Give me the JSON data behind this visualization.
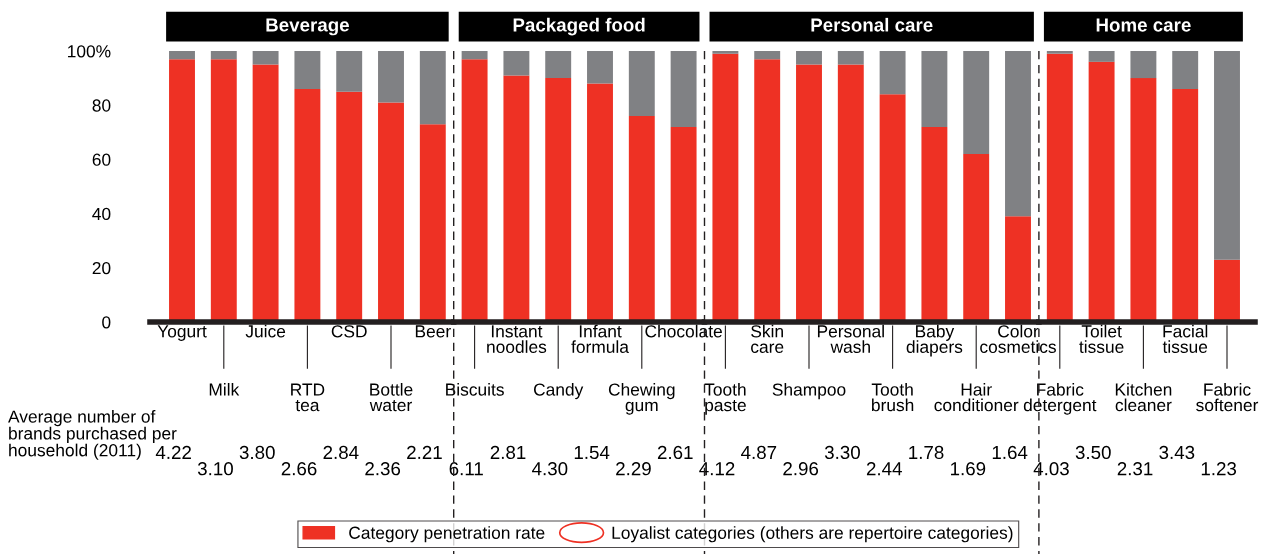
{
  "chart_data": [
    {
      "type": "bar",
      "stacked": true,
      "title": "Beverage",
      "categories": [
        "Yogurt",
        "Milk",
        "Juice",
        "RTD tea",
        "CSD",
        "Bottle water",
        "Beer"
      ],
      "series": [
        {
          "name": "Category penetration rate",
          "color": "#ee3124",
          "values": [
            97,
            97,
            95,
            86,
            85,
            81,
            73
          ]
        },
        {
          "color": "#808184",
          "values": [
            3,
            3,
            5,
            14,
            15,
            19,
            27
          ]
        }
      ],
      "ylim": [
        0,
        100
      ],
      "yticks": [
        0,
        20,
        40,
        60,
        80,
        {
          "value": 100,
          "label": "100%"
        }
      ],
      "legend": "bottom",
      "annotations": [
        "Average number of brands purchased per household (2011)",
        "Loyalist categories (others are repertoire categories)",
        "4.22",
        "3.10",
        "3.80",
        "2.66",
        "2.84",
        "2.36",
        "2.21"
      ]
    },
    {
      "type": "bar",
      "stacked": true,
      "title": "Packaged food",
      "categories": [
        "Biscuits",
        "Instant noodles",
        "Candy",
        "Infant formula",
        "Chewing gum",
        "Chocolate"
      ],
      "series": [
        {
          "color": "#ee3124",
          "values": [
            97,
            91,
            90,
            88,
            76,
            72
          ]
        },
        {
          "color": "#808184",
          "values": [
            3,
            9,
            10,
            12,
            24,
            28
          ]
        }
      ],
      "ylim": [
        0,
        100
      ],
      "tick_labels": "x",
      "annotations": [
        "6.11",
        "2.81",
        "4.30",
        "1.54",
        "2.29",
        "2.61"
      ]
    },
    {
      "type": "bar",
      "stacked": true,
      "title": "Personal care",
      "categories": [
        "Tooth paste",
        "Skin care",
        "Shampoo",
        "Personal wash",
        "Tooth brush",
        "Baby diapers",
        "Hair conditioner",
        "Color cosmetics"
      ],
      "series": [
        {
          "color": "#ee3124",
          "values": [
            99,
            97,
            95,
            95,
            84,
            72,
            62,
            39
          ]
        },
        {
          "color": "#808184",
          "values": [
            1,
            3,
            5,
            5,
            16,
            28,
            38,
            61
          ]
        }
      ],
      "ylim": [
        0,
        100
      ],
      "tick_labels": "x",
      "annotations": [
        "4.12",
        "4.87",
        "2.96",
        "3.30",
        "2.44",
        "1.78",
        "1.69",
        "1.64"
      ]
    },
    {
      "type": "bar",
      "stacked": true,
      "title": "Home care",
      "categories": [
        "Fabric detergent",
        "Toilet tissue",
        "Kitchen cleaner",
        "Facial tissue",
        "Fabric softener"
      ],
      "series": [
        {
          "color": "#ee3124",
          "values": [
            99,
            96,
            90,
            86,
            23
          ]
        },
        {
          "color": "#808184",
          "values": [
            1,
            4,
            10,
            14,
            77
          ]
        }
      ],
      "ylim": [
        0,
        100
      ],
      "tick_labels": "x",
      "annotations": [
        "4.03",
        "3.50",
        "2.31",
        "3.43",
        "1.23"
      ]
    }
  ]
}
